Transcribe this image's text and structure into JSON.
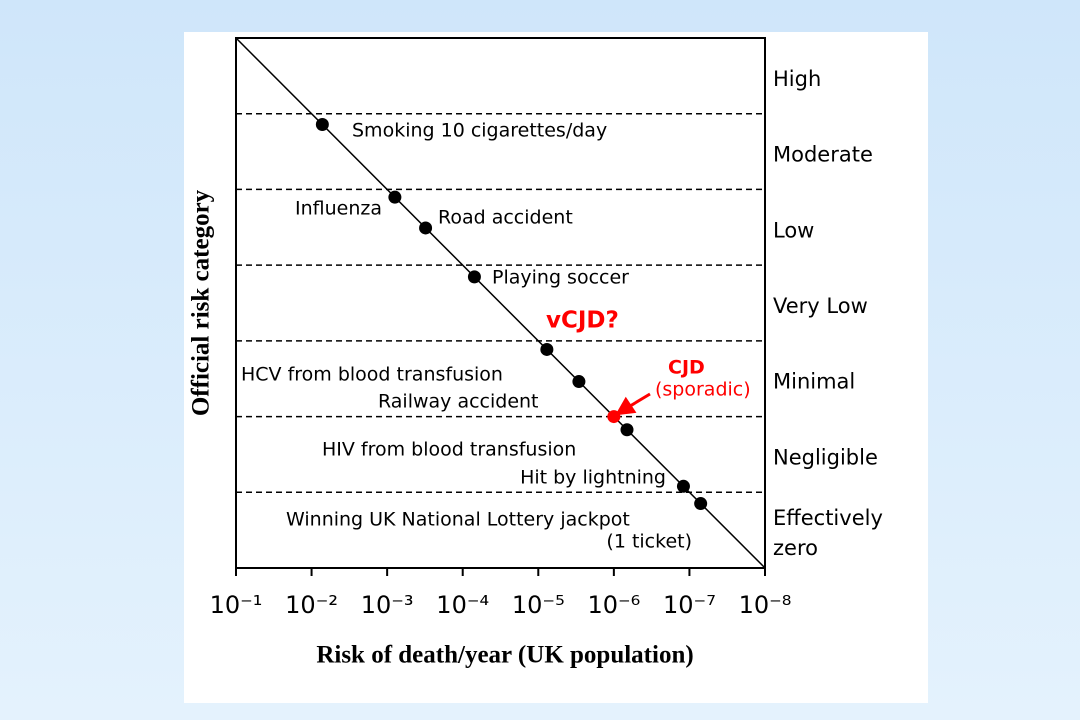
{
  "chart_data": {
    "type": "scatter",
    "x_label": "Risk of death/year (UK population)",
    "y_label": "Official risk category",
    "xscale": "log",
    "xlim": [
      0.1,
      1e-08
    ],
    "xticks": [
      {
        "value": 0.1,
        "label": "10⁻¹"
      },
      {
        "value": 0.01,
        "label": "10⁻²"
      },
      {
        "value": 0.001,
        "label": "10⁻³"
      },
      {
        "value": 0.0001,
        "label": "10⁻⁴"
      },
      {
        "value": 1e-05,
        "label": "10⁻⁵"
      },
      {
        "value": 1e-06,
        "label": "10⁻⁶"
      },
      {
        "value": 1e-07,
        "label": "10⁻⁷"
      },
      {
        "value": 1e-08,
        "label": "10⁻⁸"
      }
    ],
    "ylim": [
      0.1,
      1e-08
    ],
    "yticks": [
      0.01,
      0.001,
      0.0001,
      1e-05,
      1e-06,
      1e-07
    ],
    "grid": true,
    "risk_categories": [
      "High",
      "Moderate",
      "Low",
      "Very Low",
      "Minimal",
      "Negligible",
      [
        "Effectively",
        "zero"
      ]
    ],
    "color": "#000000",
    "points": [
      {
        "label": "Smoking 10 cigarettes/day",
        "x": 0.0072
      },
      {
        "label": "Influenza",
        "x": 0.00079
      },
      {
        "label": "Road accident",
        "x": 0.00031
      },
      {
        "label": "Playing soccer",
        "x": 7e-05
      },
      {
        "label": "HCV from blood transfusion",
        "x": 7.7e-06
      },
      {
        "label": "Railway accident",
        "x": 2.9e-06
      },
      {
        "label": [
          "CJD",
          "(sporadic)"
        ],
        "x": 1e-06,
        "color": "#ff0000"
      },
      {
        "label": "HIV from blood transfusion",
        "x": 6.7e-07
      },
      {
        "label": "Hit by lightning",
        "x": 1.2e-07
      },
      {
        "label": [
          "Winning UK National Lottery jackpot",
          "(1 ticket)"
        ],
        "x": 7.1e-08
      }
    ],
    "annotations": [
      {
        "text": "vCJD?",
        "color": "#ff0000"
      }
    ]
  }
}
